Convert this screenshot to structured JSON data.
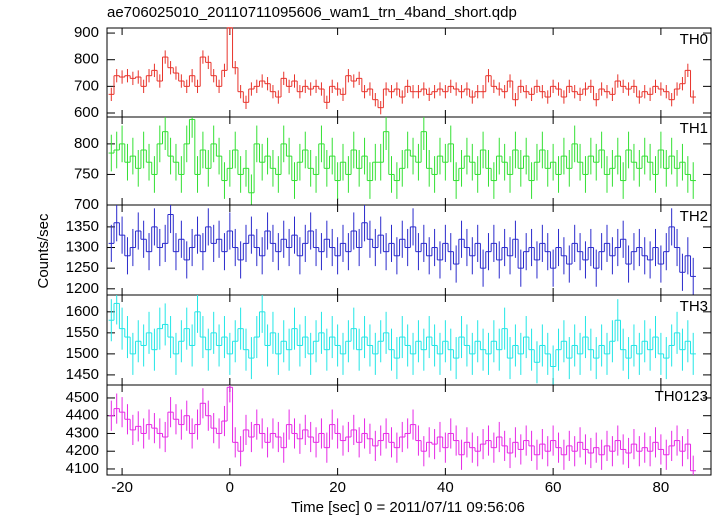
{
  "chart_data": {
    "type": "stacked-step",
    "title": "ae706025010_20110711095606_wam1_trn_4band_short.qdp",
    "xlabel": "Time [sec] 0 = 2011/07/11 09:56:06",
    "ylabel": "Counts/sec",
    "xlim": [
      -22.8,
      89.3
    ],
    "xticks": [
      -20,
      0,
      20,
      40,
      60,
      80
    ],
    "x": [
      -22,
      -21,
      -20,
      -19,
      -18,
      -17,
      -16,
      -15,
      -14,
      -13,
      -12,
      -11,
      -10,
      -9,
      -8,
      -7,
      -6,
      -5,
      -4,
      -3,
      -2,
      -1,
      0,
      1,
      2,
      3,
      4,
      5,
      6,
      7,
      8,
      9,
      10,
      11,
      12,
      13,
      14,
      15,
      16,
      17,
      18,
      19,
      20,
      21,
      22,
      23,
      24,
      25,
      26,
      27,
      28,
      29,
      30,
      31,
      32,
      33,
      34,
      35,
      36,
      37,
      38,
      39,
      40,
      41,
      42,
      43,
      44,
      45,
      46,
      47,
      48,
      49,
      50,
      51,
      52,
      53,
      54,
      55,
      56,
      57,
      58,
      59,
      60,
      61,
      62,
      63,
      64,
      65,
      66,
      67,
      68,
      69,
      70,
      71,
      72,
      73,
      74,
      75,
      76,
      77,
      78,
      79,
      80,
      81,
      82,
      83,
      84,
      85,
      86
    ],
    "series": [
      {
        "name": "TH0",
        "color": "#e8332b",
        "ylim": [
          585,
          919
        ],
        "yticks": [
          600,
          700,
          800,
          900
        ],
        "error": 25,
        "values": [
          670,
          740,
          735,
          740,
          730,
          735,
          700,
          740,
          760,
          720,
          810,
          770,
          750,
          720,
          700,
          740,
          700,
          810,
          790,
          740,
          700,
          760,
          920,
          770,
          680,
          640,
          690,
          700,
          720,
          710,
          680,
          660,
          730,
          700,
          720,
          680,
          700,
          690,
          700,
          690,
          640,
          700,
          690,
          670,
          740,
          720,
          730,
          680,
          690,
          650,
          620,
          690,
          680,
          690,
          660,
          700,
          680,
          680,
          690,
          670,
          680,
          690,
          680,
          700,
          690,
          680,
          690,
          660,
          680,
          680,
          740,
          700,
          690,
          680,
          720,
          650,
          700,
          680,
          670,
          700,
          680,
          660,
          700,
          690,
          660,
          700,
          680,
          670,
          690,
          700,
          650,
          690,
          680,
          670,
          720,
          700,
          690,
          700,
          660,
          680,
          670,
          700,
          690,
          680,
          650,
          690,
          710,
          760,
          660
        ]
      },
      {
        "name": "TH1",
        "color": "#33e033",
        "ylim": [
          700,
          844
        ],
        "yticks": [
          700,
          750,
          800
        ],
        "error": 30,
        "values": [
          785,
          790,
          800,
          770,
          780,
          760,
          790,
          770,
          750,
          800,
          820,
          780,
          770,
          750,
          800,
          840,
          750,
          790,
          760,
          800,
          780,
          740,
          760,
          790,
          750,
          760,
          720,
          800,
          770,
          780,
          760,
          750,
          800,
          780,
          740,
          770,
          790,
          760,
          750,
          800,
          760,
          780,
          740,
          770,
          750,
          790,
          760,
          780,
          740,
          770,
          770,
          820,
          750,
          740,
          760,
          790,
          780,
          770,
          820,
          760,
          750,
          780,
          770,
          800,
          740,
          760,
          780,
          770,
          750,
          790,
          760,
          740,
          780,
          770,
          750,
          790,
          760,
          780,
          740,
          770,
          790,
          760,
          770,
          750,
          780,
          760,
          800,
          770,
          750,
          780,
          770,
          790,
          750,
          760,
          780,
          740,
          790,
          770,
          760,
          780,
          770,
          750,
          790,
          760,
          780,
          760,
          770,
          750,
          740
        ]
      },
      {
        "name": "TH2",
        "color": "#2a2acc",
        "ylim": [
          1185,
          1403
        ],
        "yticks": [
          1200,
          1250,
          1300,
          1350
        ],
        "error": 45,
        "values": [
          1310,
          1360,
          1330,
          1280,
          1300,
          1340,
          1320,
          1290,
          1350,
          1300,
          1310,
          1380,
          1290,
          1320,
          1270,
          1300,
          1330,
          1290,
          1350,
          1310,
          1320,
          1290,
          1340,
          1300,
          1270,
          1310,
          1330,
          1300,
          1280,
          1340,
          1310,
          1290,
          1320,
          1300,
          1330,
          1280,
          1310,
          1340,
          1300,
          1290,
          1320,
          1300,
          1280,
          1310,
          1290,
          1340,
          1300,
          1360,
          1320,
          1300,
          1330,
          1290,
          1310,
          1280,
          1320,
          1300,
          1350,
          1290,
          1310,
          1280,
          1300,
          1270,
          1310,
          1290,
          1260,
          1320,
          1300,
          1280,
          1310,
          1250,
          1290,
          1310,
          1270,
          1300,
          1280,
          1320,
          1250,
          1290,
          1300,
          1270,
          1310,
          1290,
          1250,
          1300,
          1280,
          1260,
          1310,
          1290,
          1270,
          1300,
          1250,
          1290,
          1310,
          1280,
          1300,
          1320,
          1260,
          1290,
          1300,
          1280,
          1270,
          1300,
          1260,
          1290,
          1350,
          1300,
          1240,
          1280,
          1230
        ]
      },
      {
        "name": "TH3",
        "color": "#22e6e6",
        "ylim": [
          1426,
          1640
        ],
        "yticks": [
          1450,
          1500,
          1550,
          1600
        ],
        "error": 50,
        "values": [
          1580,
          1620,
          1560,
          1540,
          1500,
          1530,
          1520,
          1550,
          1510,
          1560,
          1570,
          1540,
          1500,
          1530,
          1560,
          1520,
          1600,
          1540,
          1510,
          1550,
          1520,
          1540,
          1500,
          1530,
          1560,
          1510,
          1490,
          1540,
          1600,
          1520,
          1550,
          1500,
          1530,
          1510,
          1560,
          1520,
          1540,
          1500,
          1530,
          1550,
          1510,
          1540,
          1520,
          1500,
          1530,
          1560,
          1510,
          1540,
          1520,
          1500,
          1530,
          1550,
          1510,
          1490,
          1540,
          1520,
          1500,
          1530,
          1510,
          1540,
          1520,
          1500,
          1530,
          1510,
          1490,
          1540,
          1520,
          1500,
          1530,
          1510,
          1500,
          1530,
          1510,
          1560,
          1490,
          1520,
          1500,
          1540,
          1510,
          1480,
          1520,
          1500,
          1470,
          1510,
          1530,
          1490,
          1520,
          1500,
          1540,
          1510,
          1490,
          1520,
          1500,
          1530,
          1580,
          1510,
          1490,
          1520,
          1500,
          1530,
          1510,
          1540,
          1500,
          1490,
          1520,
          1550,
          1510,
          1530,
          1500
        ]
      },
      {
        "name": "TH0123",
        "color": "#e629e6",
        "ylim": [
          4066,
          4573
        ],
        "yticks": [
          4100,
          4200,
          4300,
          4400,
          4500
        ],
        "error": 85,
        "values": [
          4400,
          4440,
          4420,
          4380,
          4320,
          4340,
          4300,
          4350,
          4330,
          4300,
          4280,
          4420,
          4380,
          4350,
          4400,
          4300,
          4350,
          4470,
          4400,
          4330,
          4300,
          4370,
          4560,
          4250,
          4200,
          4320,
          4280,
          4350,
          4300,
          4250,
          4300,
          4280,
          4220,
          4350,
          4300,
          4270,
          4320,
          4280,
          4250,
          4300,
          4220,
          4350,
          4300,
          4260,
          4280,
          4320,
          4250,
          4300,
          4270,
          4230,
          4260,
          4300,
          4250,
          4220,
          4280,
          4300,
          4350,
          4260,
          4200,
          4250,
          4240,
          4280,
          4220,
          4300,
          4260,
          4180,
          4250,
          4220,
          4200,
          4240,
          4260,
          4220,
          4280,
          4230,
          4190,
          4250,
          4210,
          4260,
          4230,
          4180,
          4240,
          4200,
          4260,
          4220,
          4180,
          4230,
          4200,
          4250,
          4210,
          4190,
          4220,
          4180,
          4230,
          4200,
          4260,
          4210,
          4190,
          4240,
          4200,
          4220,
          4200,
          4250,
          4210,
          4180,
          4230,
          4260,
          4200,
          4240,
          4090
        ]
      }
    ]
  }
}
